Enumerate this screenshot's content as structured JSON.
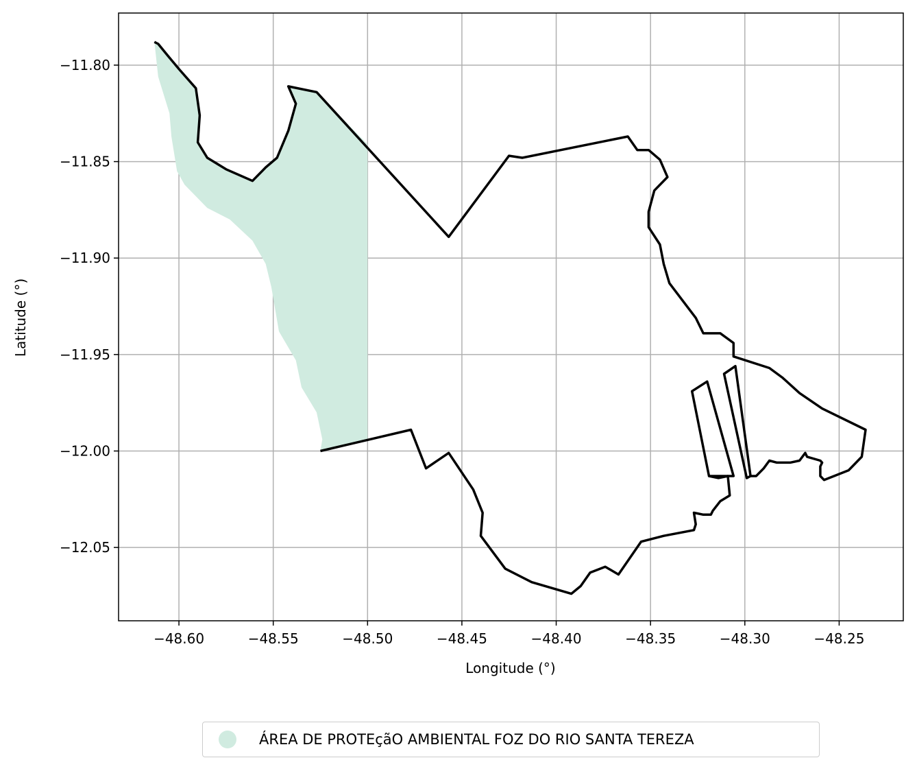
{
  "chart_data": {
    "type": "map",
    "xlabel": "Longitude (°)",
    "ylabel": "Latitude (°)",
    "xlim": [
      -48.632,
      -48.216
    ],
    "ylim": [
      -12.088,
      -11.773
    ],
    "x_ticks": [
      -48.6,
      -48.55,
      -48.5,
      -48.45,
      -48.4,
      -48.35,
      -48.3,
      -48.25
    ],
    "x_tick_labels": [
      "−48.60",
      "−48.55",
      "−48.50",
      "−48.45",
      "−48.40",
      "−48.35",
      "−48.30",
      "−48.25"
    ],
    "y_ticks": [
      -11.8,
      -11.85,
      -11.9,
      -11.95,
      -12.0,
      -12.05
    ],
    "y_tick_labels": [
      "−11.80",
      "−11.85",
      "−11.90",
      "−11.95",
      "−12.00",
      "−12.05"
    ],
    "grid": true,
    "legend_position": "bottom-center",
    "fill_color": "#d0ebe0",
    "outline_color": "#000000",
    "filled_area": {
      "name": "ÁREA DE PROTEçãO AMBIENTAL FOZ DO RIO SANTA TEREZA",
      "polygon": [
        [
          -48.613,
          -11.788
        ],
        [
          -48.611,
          -11.789
        ],
        [
          -48.606,
          -11.795
        ],
        [
          -48.6,
          -11.802
        ],
        [
          -48.591,
          -11.812
        ],
        [
          -48.589,
          -11.826
        ],
        [
          -48.59,
          -11.84
        ],
        [
          -48.585,
          -11.848
        ],
        [
          -48.575,
          -11.854
        ],
        [
          -48.561,
          -11.86
        ],
        [
          -48.554,
          -11.853
        ],
        [
          -48.548,
          -11.848
        ],
        [
          -48.542,
          -11.834
        ],
        [
          -48.538,
          -11.82
        ],
        [
          -48.542,
          -11.811
        ],
        [
          -48.527,
          -11.814
        ],
        [
          -48.5,
          -11.841
        ],
        [
          -48.5,
          -11.994
        ],
        [
          -48.525,
          -12.0
        ],
        [
          -48.524,
          -11.994
        ],
        [
          -48.527,
          -11.98
        ],
        [
          -48.535,
          -11.967
        ],
        [
          -48.538,
          -11.953
        ],
        [
          -48.547,
          -11.938
        ],
        [
          -48.551,
          -11.915
        ],
        [
          -48.554,
          -11.903
        ],
        [
          -48.561,
          -11.891
        ],
        [
          -48.573,
          -11.88
        ],
        [
          -48.585,
          -11.874
        ],
        [
          -48.597,
          -11.862
        ],
        [
          -48.601,
          -11.855
        ],
        [
          -48.604,
          -11.837
        ],
        [
          -48.605,
          -11.825
        ],
        [
          -48.611,
          -11.806
        ],
        [
          -48.613,
          -11.788
        ]
      ]
    },
    "outlines": [
      {
        "name": "outer boundary",
        "polygon": [
          [
            -48.613,
            -11.788
          ],
          [
            -48.611,
            -11.789
          ],
          [
            -48.606,
            -11.795
          ],
          [
            -48.6,
            -11.802
          ],
          [
            -48.591,
            -11.812
          ],
          [
            -48.589,
            -11.826
          ],
          [
            -48.59,
            -11.84
          ],
          [
            -48.585,
            -11.848
          ],
          [
            -48.575,
            -11.854
          ],
          [
            -48.561,
            -11.86
          ],
          [
            -48.554,
            -11.853
          ],
          [
            -48.548,
            -11.848
          ],
          [
            -48.542,
            -11.834
          ],
          [
            -48.538,
            -11.82
          ],
          [
            -48.542,
            -11.811
          ],
          [
            -48.527,
            -11.814
          ],
          [
            -48.457,
            -11.889
          ],
          [
            -48.425,
            -11.847
          ],
          [
            -48.418,
            -11.848
          ],
          [
            -48.362,
            -11.837
          ],
          [
            -48.357,
            -11.844
          ],
          [
            -48.351,
            -11.844
          ],
          [
            -48.345,
            -11.849
          ],
          [
            -48.341,
            -11.858
          ],
          [
            -48.348,
            -11.865
          ],
          [
            -48.351,
            -11.876
          ],
          [
            -48.351,
            -11.884
          ],
          [
            -48.345,
            -11.893
          ],
          [
            -48.343,
            -11.903
          ],
          [
            -48.34,
            -11.913
          ],
          [
            -48.326,
            -11.931
          ],
          [
            -48.322,
            -11.939
          ],
          [
            -48.313,
            -11.939
          ],
          [
            -48.306,
            -11.944
          ],
          [
            -48.306,
            -11.951
          ],
          [
            -48.287,
            -11.957
          ],
          [
            -48.28,
            -11.962
          ],
          [
            -48.271,
            -11.97
          ],
          [
            -48.259,
            -11.978
          ],
          [
            -48.236,
            -11.989
          ],
          [
            -48.238,
            -12.003
          ],
          [
            -48.245,
            -12.01
          ],
          [
            -48.258,
            -12.015
          ],
          [
            -48.26,
            -12.013
          ],
          [
            -48.26,
            -12.008
          ],
          [
            -48.259,
            -12.006
          ],
          [
            -48.26,
            -12.005
          ],
          [
            -48.267,
            -12.003
          ],
          [
            -48.268,
            -12.001
          ],
          [
            -48.271,
            -12.005
          ],
          [
            -48.276,
            -12.006
          ],
          [
            -48.279,
            -12.006
          ],
          [
            -48.283,
            -12.006
          ],
          [
            -48.287,
            -12.005
          ],
          [
            -48.29,
            -12.009
          ],
          [
            -48.294,
            -12.013
          ],
          [
            -48.297,
            -12.013
          ]
        ]
      },
      {
        "name": "lower boundary",
        "polygon": [
          [
            -48.525,
            -12.0
          ],
          [
            -48.477,
            -11.989
          ],
          [
            -48.469,
            -12.009
          ],
          [
            -48.457,
            -12.001
          ],
          [
            -48.444,
            -12.02
          ],
          [
            -48.439,
            -12.032
          ],
          [
            -48.44,
            -12.044
          ],
          [
            -48.427,
            -12.061
          ],
          [
            -48.413,
            -12.068
          ],
          [
            -48.392,
            -12.074
          ],
          [
            -48.387,
            -12.07
          ],
          [
            -48.382,
            -12.063
          ],
          [
            -48.374,
            -12.06
          ],
          [
            -48.367,
            -12.064
          ],
          [
            -48.355,
            -12.047
          ],
          [
            -48.343,
            -12.044
          ],
          [
            -48.327,
            -12.041
          ],
          [
            -48.326,
            -12.038
          ],
          [
            -48.327,
            -12.032
          ],
          [
            -48.322,
            -12.033
          ],
          [
            -48.318,
            -12.033
          ],
          [
            -48.317,
            -12.031
          ],
          [
            -48.313,
            -12.026
          ],
          [
            -48.308,
            -12.023
          ],
          [
            -48.309,
            -12.013
          ],
          [
            -48.314,
            -12.014
          ],
          [
            -48.319,
            -12.013
          ]
        ]
      },
      {
        "name": "strip west",
        "polygon": [
          [
            -48.328,
            -11.969
          ],
          [
            -48.32,
            -11.964
          ],
          [
            -48.306,
            -12.013
          ],
          [
            -48.319,
            -12.013
          ]
        ]
      },
      {
        "name": "strip east",
        "polygon": [
          [
            -48.311,
            -11.96
          ],
          [
            -48.305,
            -11.956
          ],
          [
            -48.297,
            -12.013
          ],
          [
            -48.299,
            -12.014
          ]
        ]
      }
    ]
  }
}
